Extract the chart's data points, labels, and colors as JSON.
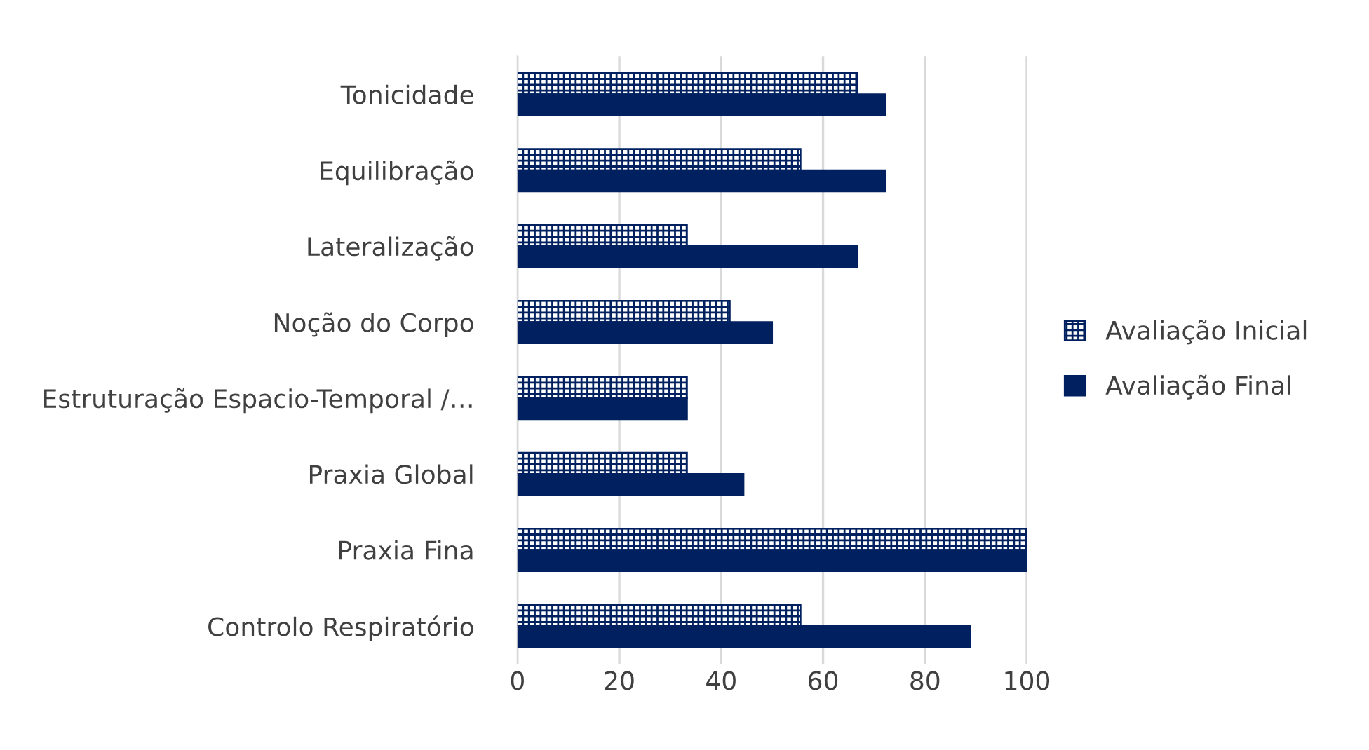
{
  "chart_data": {
    "type": "bar",
    "orientation": "horizontal",
    "categories": [
      "Tonicidade",
      "Equilibração",
      "Lateralização",
      "Noção do Corpo",
      "Estruturação Espacio-Temporal /…",
      "Praxia Global",
      "Praxia Fina",
      "Controlo Respiratório"
    ],
    "series": [
      {
        "name": "Avaliação Inicial",
        "color": "#002060",
        "values": [
          66.7,
          55.6,
          33.3,
          41.7,
          33.3,
          33.3,
          100,
          55.6
        ]
      },
      {
        "name": "Avaliação Final",
        "color": "#002060",
        "values": [
          72.2,
          72.2,
          66.7,
          50,
          33.3,
          44.4,
          100,
          88.9
        ]
      }
    ],
    "xlim": [
      0,
      100
    ],
    "xticks": [
      0,
      20,
      40,
      60,
      80,
      100
    ],
    "grid": "x",
    "legend": "right"
  }
}
